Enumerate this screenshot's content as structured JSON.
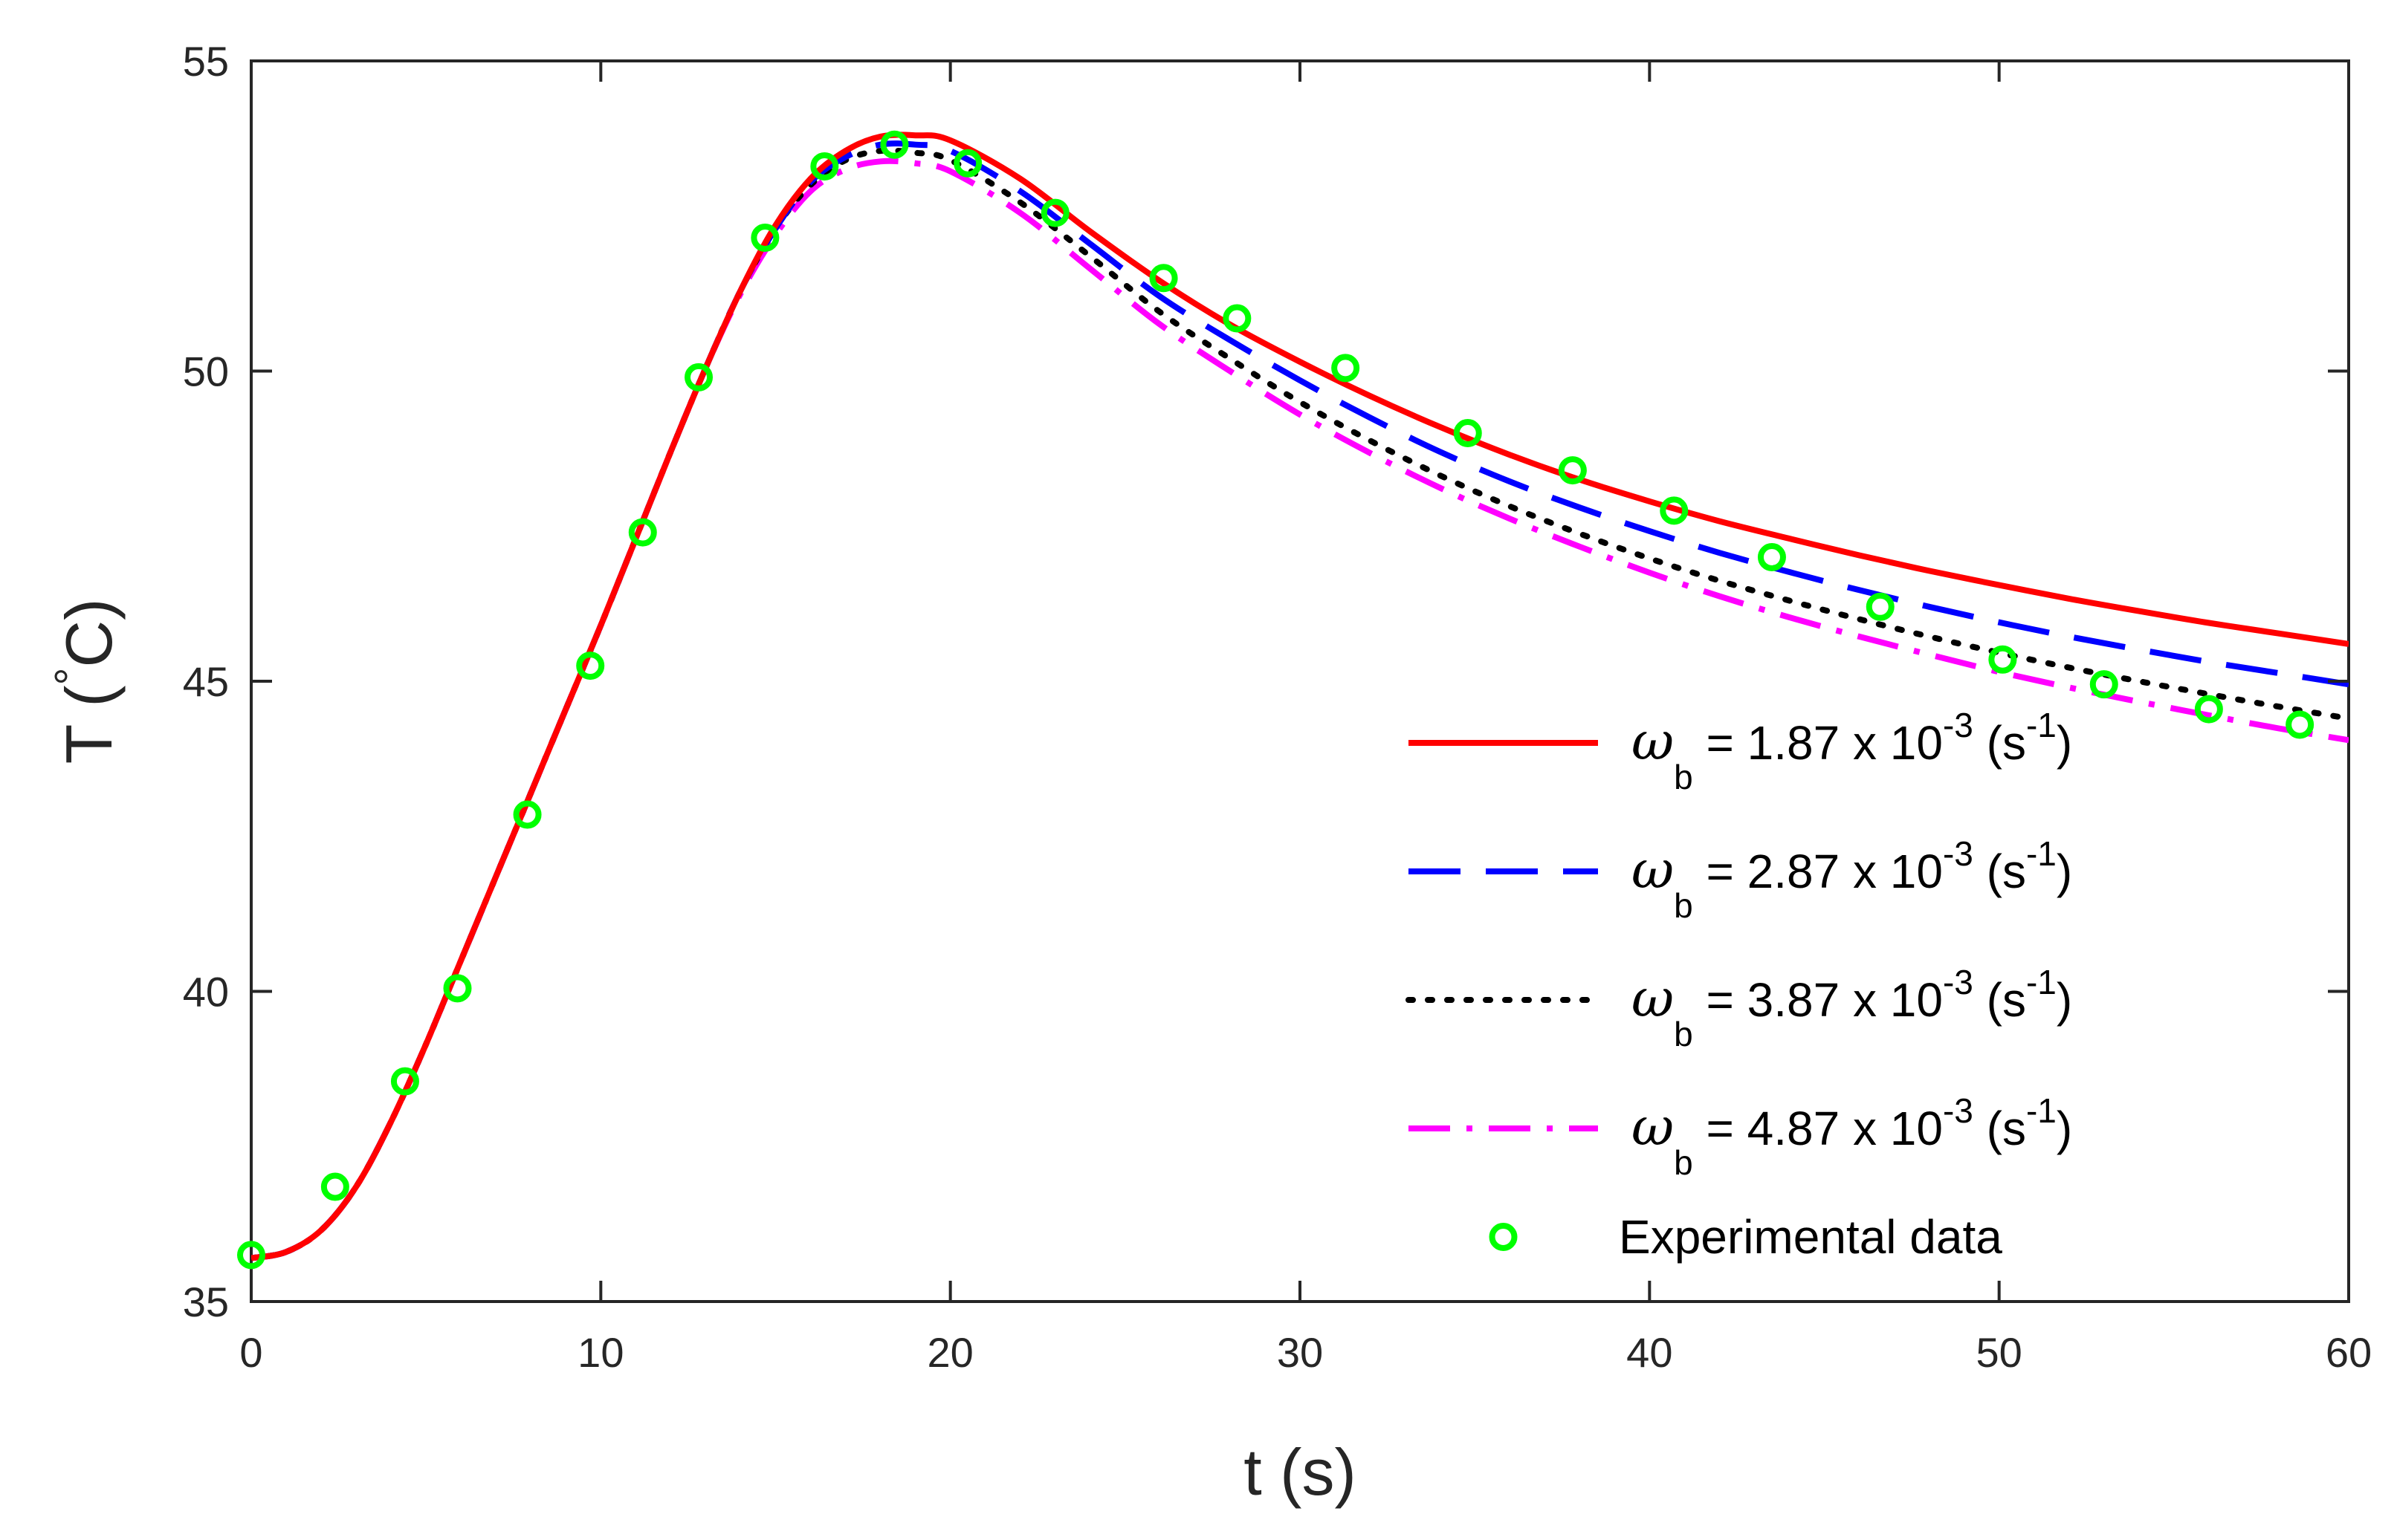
{
  "chart_data": {
    "type": "line",
    "xlabel": "t (s)",
    "ylabel_prefix": "T (",
    "ylabel_degree": "°",
    "ylabel_unit": "C)",
    "xlim": [
      0,
      60
    ],
    "ylim": [
      35,
      55
    ],
    "xticks": [
      0,
      10,
      20,
      30,
      40,
      50,
      60
    ],
    "yticks": [
      35,
      40,
      45,
      50,
      55
    ],
    "grid": false,
    "legend_position": "bottom-right",
    "series": [
      {
        "name": "ω_b = 1.87 x 10^-3 (s^-1)",
        "legend": {
          "symbol": "ω",
          "sub": "b",
          "text": "= 1.87 x 10",
          "exp": "-3",
          "unit_open": "(s",
          "unit_exp": "-1",
          "unit_close": ")"
        },
        "color": "#ff0000",
        "style": "solid",
        "x": [
          0,
          1,
          2,
          3,
          4,
          5,
          6,
          7,
          8,
          9,
          10,
          11,
          12,
          13,
          14,
          15,
          16,
          17,
          18,
          19,
          20,
          22,
          24,
          26,
          28,
          30,
          32,
          34,
          36,
          38,
          40,
          42,
          44,
          46,
          48,
          50,
          52,
          54,
          56,
          58,
          60
        ],
        "y": [
          35.7,
          35.8,
          36.15,
          36.85,
          37.9,
          39.15,
          40.5,
          41.85,
          43.2,
          44.55,
          45.9,
          47.3,
          48.7,
          50.05,
          51.3,
          52.35,
          53.1,
          53.55,
          53.78,
          53.8,
          53.72,
          53.1,
          52.25,
          51.45,
          50.75,
          50.15,
          49.6,
          49.1,
          48.65,
          48.25,
          47.9,
          47.58,
          47.3,
          47.03,
          46.78,
          46.55,
          46.33,
          46.13,
          45.94,
          45.77,
          45.6
        ]
      },
      {
        "name": "ω_b = 2.87 x 10^-3 (s^-1)",
        "legend": {
          "symbol": "ω",
          "sub": "b",
          "text": "= 2.87 x 10",
          "exp": "-3",
          "unit_open": "(s",
          "unit_exp": "-1",
          "unit_close": ")"
        },
        "color": "#0000ff",
        "style": "dashed",
        "x": [
          0,
          1,
          2,
          3,
          4,
          5,
          6,
          7,
          8,
          9,
          10,
          11,
          12,
          13,
          14,
          15,
          16,
          17,
          18,
          19,
          20,
          22,
          24,
          26,
          28,
          30,
          32,
          34,
          36,
          38,
          40,
          42,
          44,
          46,
          48,
          50,
          52,
          54,
          56,
          58,
          60
        ],
        "y": [
          35.7,
          35.8,
          36.15,
          36.85,
          37.9,
          39.15,
          40.5,
          41.85,
          43.2,
          44.55,
          45.9,
          47.3,
          48.7,
          50.05,
          51.3,
          52.3,
          53.05,
          53.45,
          53.65,
          53.65,
          53.55,
          52.9,
          52.05,
          51.2,
          50.5,
          49.85,
          49.25,
          48.7,
          48.22,
          47.8,
          47.42,
          47.07,
          46.76,
          46.47,
          46.2,
          45.95,
          45.72,
          45.51,
          45.31,
          45.13,
          44.95
        ]
      },
      {
        "name": "ω_b = 3.87 x 10^-3 (s^-1)",
        "legend": {
          "symbol": "ω",
          "sub": "b",
          "text": "= 3.87 x 10",
          "exp": "-3",
          "unit_open": "(s",
          "unit_exp": "-1",
          "unit_close": ")"
        },
        "color": "#000000",
        "style": "dotted",
        "x": [
          0,
          1,
          2,
          3,
          4,
          5,
          6,
          7,
          8,
          9,
          10,
          11,
          12,
          13,
          14,
          15,
          16,
          17,
          18,
          19,
          20,
          22,
          24,
          26,
          28,
          30,
          32,
          34,
          36,
          38,
          40,
          42,
          44,
          46,
          48,
          50,
          52,
          54,
          56,
          58,
          60
        ],
        "y": [
          35.7,
          35.8,
          36.15,
          36.85,
          37.9,
          39.15,
          40.5,
          41.85,
          43.2,
          44.55,
          45.9,
          47.3,
          48.7,
          50.05,
          51.3,
          52.3,
          53.0,
          53.4,
          53.55,
          53.52,
          53.4,
          52.72,
          51.85,
          50.95,
          50.2,
          49.5,
          48.88,
          48.32,
          47.82,
          47.38,
          46.98,
          46.62,
          46.3,
          46.0,
          45.72,
          45.46,
          45.22,
          45.0,
          44.79,
          44.59,
          44.4
        ]
      },
      {
        "name": "ω_b = 4.87 x 10^-3 (s^-1)",
        "legend": {
          "symbol": "ω",
          "sub": "b",
          "text": "= 4.87 x 10",
          "exp": "-3",
          "unit_open": "(s",
          "unit_exp": "-1",
          "unit_close": ")"
        },
        "color": "#ff00ff",
        "style": "dashdot",
        "x": [
          0,
          1,
          2,
          3,
          4,
          5,
          6,
          7,
          8,
          9,
          10,
          11,
          12,
          13,
          14,
          15,
          16,
          17,
          18,
          19,
          20,
          22,
          24,
          26,
          28,
          30,
          32,
          34,
          36,
          38,
          40,
          42,
          44,
          46,
          48,
          50,
          52,
          54,
          56,
          58,
          60
        ],
        "y": [
          35.7,
          35.8,
          36.15,
          36.85,
          37.9,
          39.15,
          40.5,
          41.85,
          43.2,
          44.55,
          45.9,
          47.3,
          48.7,
          50.05,
          51.25,
          52.2,
          52.9,
          53.25,
          53.38,
          53.35,
          53.22,
          52.55,
          51.65,
          50.75,
          50.0,
          49.3,
          48.68,
          48.12,
          47.62,
          47.17,
          46.75,
          46.37,
          46.03,
          45.72,
          45.43,
          45.15,
          44.9,
          44.67,
          44.45,
          44.24,
          44.05
        ]
      },
      {
        "name": "Experimental data",
        "legend": {
          "text": "Experimental data"
        },
        "color": "#00ff00",
        "style": "markers",
        "x": [
          0.0,
          2.4,
          4.4,
          5.9,
          7.9,
          9.7,
          11.2,
          12.8,
          14.7,
          16.4,
          18.4,
          20.5,
          23.0,
          26.1,
          28.2,
          31.3,
          34.8,
          37.8,
          40.7,
          43.5,
          46.6,
          50.1,
          53.0,
          56.0,
          58.6
        ],
        "y": [
          35.75,
          36.85,
          38.55,
          40.05,
          42.85,
          45.25,
          47.4,
          49.9,
          52.15,
          53.3,
          53.65,
          53.35,
          52.55,
          51.5,
          50.85,
          50.05,
          49.0,
          48.4,
          47.75,
          47.0,
          46.2,
          45.35,
          44.95,
          44.55,
          44.3
        ]
      }
    ]
  }
}
